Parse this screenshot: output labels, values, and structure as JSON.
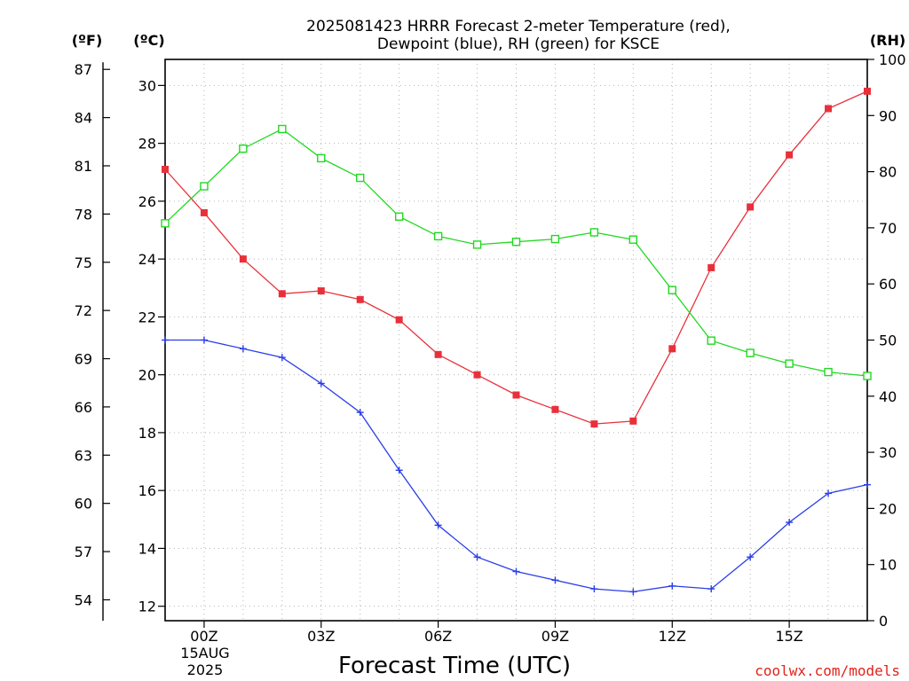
{
  "chart_data": {
    "type": "line",
    "title_line1": "2025081423 HRRR Forecast 2-meter Temperature (red),",
    "title_line2": "Dewpoint (blue), RH (green) for KSCE",
    "xlabel": "Forecast Time (UTC)",
    "credit": "coolwx.com/models",
    "units": {
      "fahrenheit": "(ºF)",
      "celsius": "(ºC)",
      "rh": "(RH)"
    },
    "date_label_line1": "15AUG",
    "date_label_line2": "2025",
    "x_hours": [
      -1,
      0,
      1,
      2,
      3,
      4,
      5,
      6,
      7,
      8,
      9,
      10,
      11,
      12,
      13,
      14,
      15,
      16,
      17
    ],
    "x_range": [
      -1,
      17
    ],
    "x_ticks": [
      {
        "hour": 0,
        "label": "00Z"
      },
      {
        "hour": 3,
        "label": "03Z"
      },
      {
        "hour": 6,
        "label": "06Z"
      },
      {
        "hour": 9,
        "label": "09Z"
      },
      {
        "hour": 12,
        "label": "12Z"
      },
      {
        "hour": 15,
        "label": "15Z"
      }
    ],
    "celsius_range": [
      11.5,
      30.9
    ],
    "celsius_ticks": [
      12,
      14,
      16,
      18,
      20,
      22,
      24,
      26,
      28,
      30
    ],
    "fahrenheit_ticks": [
      54,
      57,
      60,
      63,
      66,
      69,
      72,
      75,
      78,
      81,
      84,
      87
    ],
    "rh_range": [
      0,
      100
    ],
    "rh_ticks": [
      0,
      10,
      20,
      30,
      40,
      50,
      60,
      70,
      80,
      90,
      100
    ],
    "series": [
      {
        "key": "temperature",
        "axis": "celsius",
        "color": "#e8303a",
        "marker": "filled-square",
        "values": [
          27.1,
          25.6,
          24.0,
          22.8,
          22.9,
          22.6,
          21.9,
          20.7,
          20.0,
          19.3,
          18.8,
          18.3,
          18.4,
          20.9,
          23.7,
          25.8,
          27.6,
          29.2,
          29.8
        ]
      },
      {
        "key": "dewpoint",
        "axis": "celsius",
        "color": "#2b3ee8",
        "marker": "plus",
        "values": [
          21.2,
          21.2,
          20.9,
          20.6,
          19.7,
          18.7,
          16.7,
          14.8,
          13.7,
          13.2,
          12.9,
          12.6,
          12.5,
          12.7,
          12.6,
          13.7,
          14.9,
          15.9,
          16.2
        ]
      },
      {
        "key": "rh",
        "axis": "rh",
        "color": "#22d822",
        "marker": "open-square",
        "values": [
          70.8,
          77.4,
          84.1,
          87.6,
          82.4,
          78.9,
          72.0,
          68.5,
          67.0,
          67.5,
          68.0,
          69.2,
          67.9,
          58.9,
          49.9,
          47.7,
          45.8,
          44.3,
          43.6
        ]
      }
    ]
  }
}
